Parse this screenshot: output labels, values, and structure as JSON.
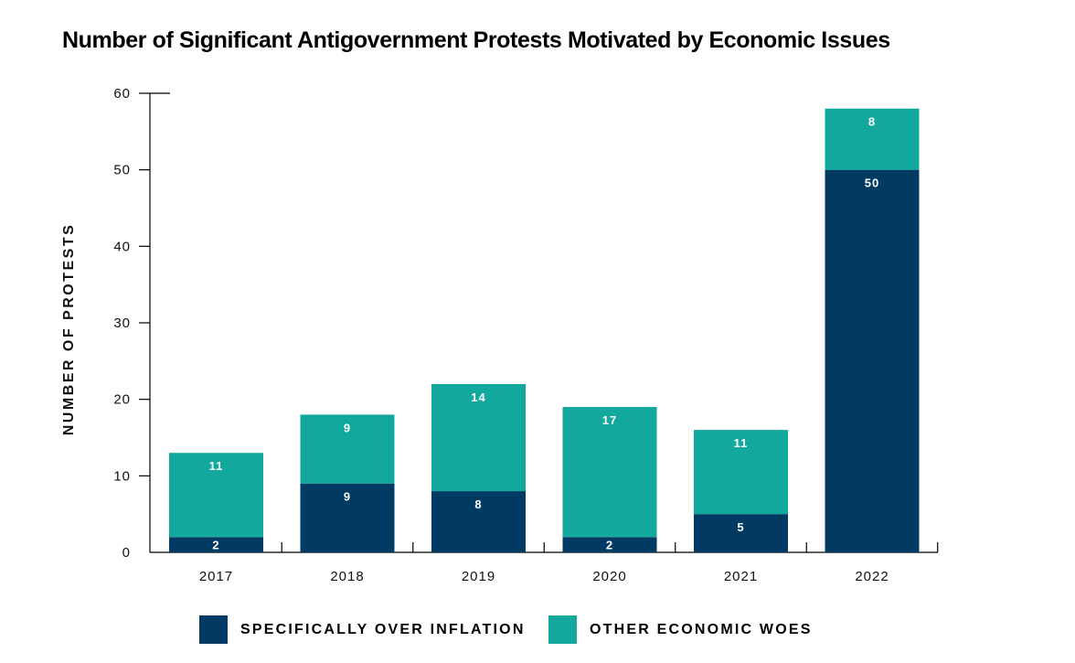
{
  "colors": {
    "inflation": "#013a63",
    "other": "#13a89e",
    "axis": "#000000"
  },
  "chart_data": {
    "type": "bar",
    "stacked": true,
    "title": "Number of Significant Antigovernment Protests Motivated by Economic Issues",
    "xlabel": "",
    "ylabel": "NUMBER OF PROTESTS",
    "ylim": [
      0,
      60
    ],
    "yticks": [
      "0",
      "10",
      "20",
      "30",
      "40",
      "50",
      "60"
    ],
    "categories": [
      "2017",
      "2018",
      "2019",
      "2020",
      "2021",
      "2022"
    ],
    "series": [
      {
        "name": "SPECIFICALLY OVER INFLATION",
        "values": [
          2,
          9,
          8,
          2,
          5,
          50
        ]
      },
      {
        "name": "OTHER ECONOMIC WOES",
        "values": [
          11,
          9,
          14,
          17,
          11,
          8
        ]
      }
    ],
    "data_labels": true,
    "grid": false,
    "legend": "bottom"
  }
}
